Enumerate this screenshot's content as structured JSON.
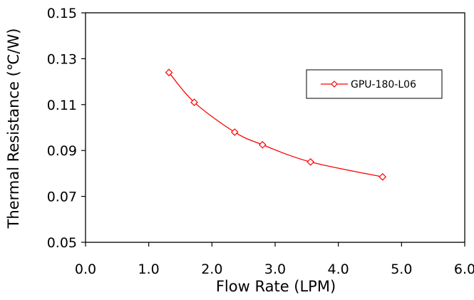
{
  "chart_data": {
    "type": "line",
    "title": "",
    "xlabel": "Flow Rate (LPM)",
    "ylabel": "Thermal Resistance (℃/W)",
    "xlim": [
      0.0,
      6.0
    ],
    "ylim": [
      0.05,
      0.15
    ],
    "xticks": [
      "0.0",
      "1.0",
      "2.0",
      "3.0",
      "4.0",
      "5.0",
      "6.0"
    ],
    "yticks": [
      "0.05",
      "0.07",
      "0.09",
      "0.11",
      "0.13",
      "0.15"
    ],
    "grid": true,
    "legend_position": "top-right",
    "series": [
      {
        "name": "GPU-180-L06",
        "color": "#ff0000",
        "marker": "diamond",
        "x": [
          1.32,
          1.72,
          2.36,
          2.8,
          3.56,
          4.7
        ],
        "y": [
          0.124,
          0.111,
          0.098,
          0.0925,
          0.085,
          0.0785
        ]
      }
    ]
  }
}
